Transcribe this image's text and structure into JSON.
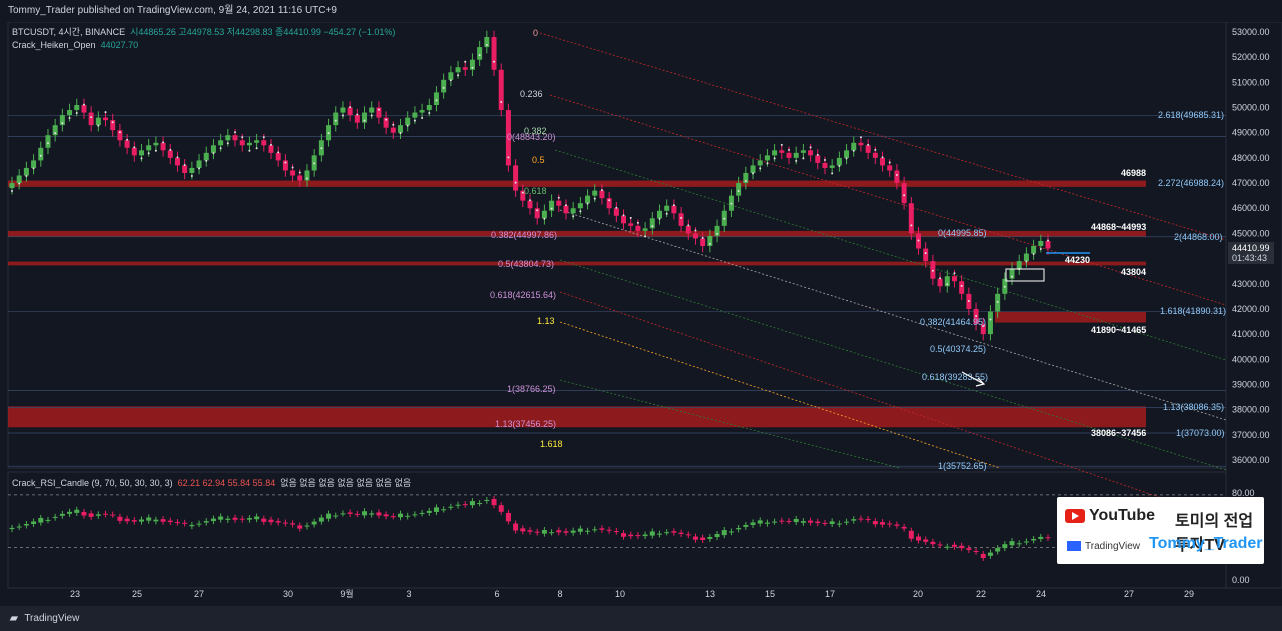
{
  "header": {
    "published": "Tommy_Trader published on TradingView.com, 9월 24, 2021 11:16 UTC+9"
  },
  "legend": {
    "symbol": "BTCUSDT, 4시간, BINANCE",
    "ohlc": "시44865.26 고44978.53 저44298.83 종44410.99 −454.27 (−1.01%)",
    "indicator": "Crack_Heiken_Open",
    "indicator_value": "44027.70"
  },
  "rsi_legend": {
    "name": "Crack_RSI_Candle (9, 70, 50, 30, 30, 3)",
    "values": "62.21 62.94 55.84 55.84",
    "tail": "없음 없음 없음 없음 없음 없음 없음"
  },
  "price_axis": [
    "53000.00",
    "52000.00",
    "51000.00",
    "50000.00",
    "49000.00",
    "48000.00",
    "47000.00",
    "46000.00",
    "45000.00",
    "44000.00",
    "43000.00",
    "42000.00",
    "41000.00",
    "40000.00",
    "39000.00",
    "38000.00",
    "37000.00",
    "36000.00"
  ],
  "rsi_axis": [
    "80.00",
    "0.00"
  ],
  "current_price": {
    "price": "44410.99",
    "countdown": "01:43:43"
  },
  "time_axis": [
    "23",
    "25",
    "27",
    "30",
    "9월",
    "3",
    "6",
    "8",
    "10",
    "13",
    "15",
    "17",
    "20",
    "22",
    "24",
    "27",
    "29"
  ],
  "fib_labels_left": [
    {
      "text": "0",
      "color": "#ef9a9a"
    },
    {
      "text": "0.236",
      "color": "#d1d4dc"
    },
    {
      "text": "0(48843.20)",
      "color": "#ce93d8"
    },
    {
      "text": "0.382",
      "color": "#a5d6a7"
    },
    {
      "text": "0.5",
      "color": "#ffa726"
    },
    {
      "text": "0.618",
      "color": "#66bb6a"
    },
    {
      "text": "0.382(44997.86)",
      "color": "#ce93d8"
    },
    {
      "text": "0.5(43804.73)",
      "color": "#ce93d8"
    },
    {
      "text": "0.618(42615.64)",
      "color": "#ce93d8"
    },
    {
      "text": "1.13",
      "color": "#ffeb3b"
    },
    {
      "text": "1(38766.25)",
      "color": "#ce93d8"
    },
    {
      "text": "1.13(37456.25)",
      "color": "#ce93d8"
    },
    {
      "text": "1.618",
      "color": "#ffeb3b"
    }
  ],
  "fib_labels_right": [
    {
      "text": "2.618(49685.31)"
    },
    {
      "text": "2.272(46988.24)"
    },
    {
      "text": "2(44868.00)"
    },
    {
      "text": "1.618(41890.31)"
    },
    {
      "text": "1.13(38086.35)"
    },
    {
      "text": "1(37073.00)"
    },
    {
      "text": "1(35752.65)"
    }
  ],
  "fib_labels_mid": [
    {
      "text": "0(44995.85)"
    },
    {
      "text": "0.382(41464.95)"
    },
    {
      "text": "0.5(40374.25)"
    },
    {
      "text": "0.618(39283.55)"
    }
  ],
  "level_labels": [
    {
      "text": "46988"
    },
    {
      "text": "44868~44993"
    },
    {
      "text": "44230"
    },
    {
      "text": "43804"
    },
    {
      "text": "41890~41465"
    },
    {
      "text": "38086~37456"
    }
  ],
  "promo": {
    "youtube": "YouTube",
    "korean": "토미의 전업투자TV",
    "tradingview": "TradingView",
    "channel": "Tommy_Trader"
  },
  "footer": {
    "brand": "TradingView"
  },
  "colors": {
    "bg": "#131722",
    "up": "#26a69a",
    "down": "#ef5350",
    "zone": "#b71c1c",
    "candle_up": "#4caf50",
    "candle_down": "#e91e63"
  },
  "chart_data": {
    "type": "candlestick",
    "title": "BTCUSDT, 4시간, BINANCE",
    "xlabel": "",
    "ylabel": "",
    "ylim": [
      35500,
      53300
    ],
    "x_ticks": [
      "23",
      "25",
      "27",
      "30",
      "9월",
      "3",
      "6",
      "8",
      "10",
      "13",
      "15",
      "17",
      "20",
      "22",
      "24",
      "27",
      "29"
    ],
    "closes": [
      47000,
      47300,
      47600,
      47900,
      48400,
      48900,
      49300,
      49700,
      49900,
      50100,
      49800,
      49300,
      49600,
      49500,
      49100,
      48700,
      48400,
      48100,
      48300,
      48500,
      48600,
      48300,
      48000,
      47700,
      47400,
      47600,
      47900,
      48200,
      48500,
      48700,
      48900,
      48700,
      48500,
      48600,
      48700,
      48500,
      48200,
      47900,
      47500,
      47300,
      47100,
      47500,
      48100,
      48700,
      49300,
      49800,
      50000,
      49700,
      49400,
      49800,
      50000,
      49600,
      49200,
      49000,
      49300,
      49600,
      49800,
      49900,
      50100,
      50600,
      51100,
      51400,
      51600,
      51500,
      51900,
      52400,
      52800,
      51500,
      49900,
      47700,
      46700,
      46300,
      46000,
      45600,
      45900,
      46300,
      46100,
      45800,
      46000,
      46200,
      46500,
      46700,
      46400,
      46000,
      45700,
      45400,
      45300,
      45100,
      45200,
      45600,
      45900,
      46100,
      45800,
      45300,
      45000,
      44800,
      44500,
      44900,
      45300,
      45900,
      46500,
      47000,
      47400,
      47700,
      47900,
      48100,
      48300,
      48200,
      48000,
      48200,
      48300,
      48100,
      47800,
      47600,
      47700,
      48000,
      48300,
      48600,
      48500,
      48200,
      48000,
      47700,
      47500,
      47000,
      46200,
      45000,
      44400,
      43900,
      43200,
      42900,
      43300,
      43100,
      42600,
      42000,
      41400,
      41000,
      41900,
      42600,
      43200,
      43600,
      43900,
      44200,
      44500,
      44700,
      44400
    ]
  }
}
